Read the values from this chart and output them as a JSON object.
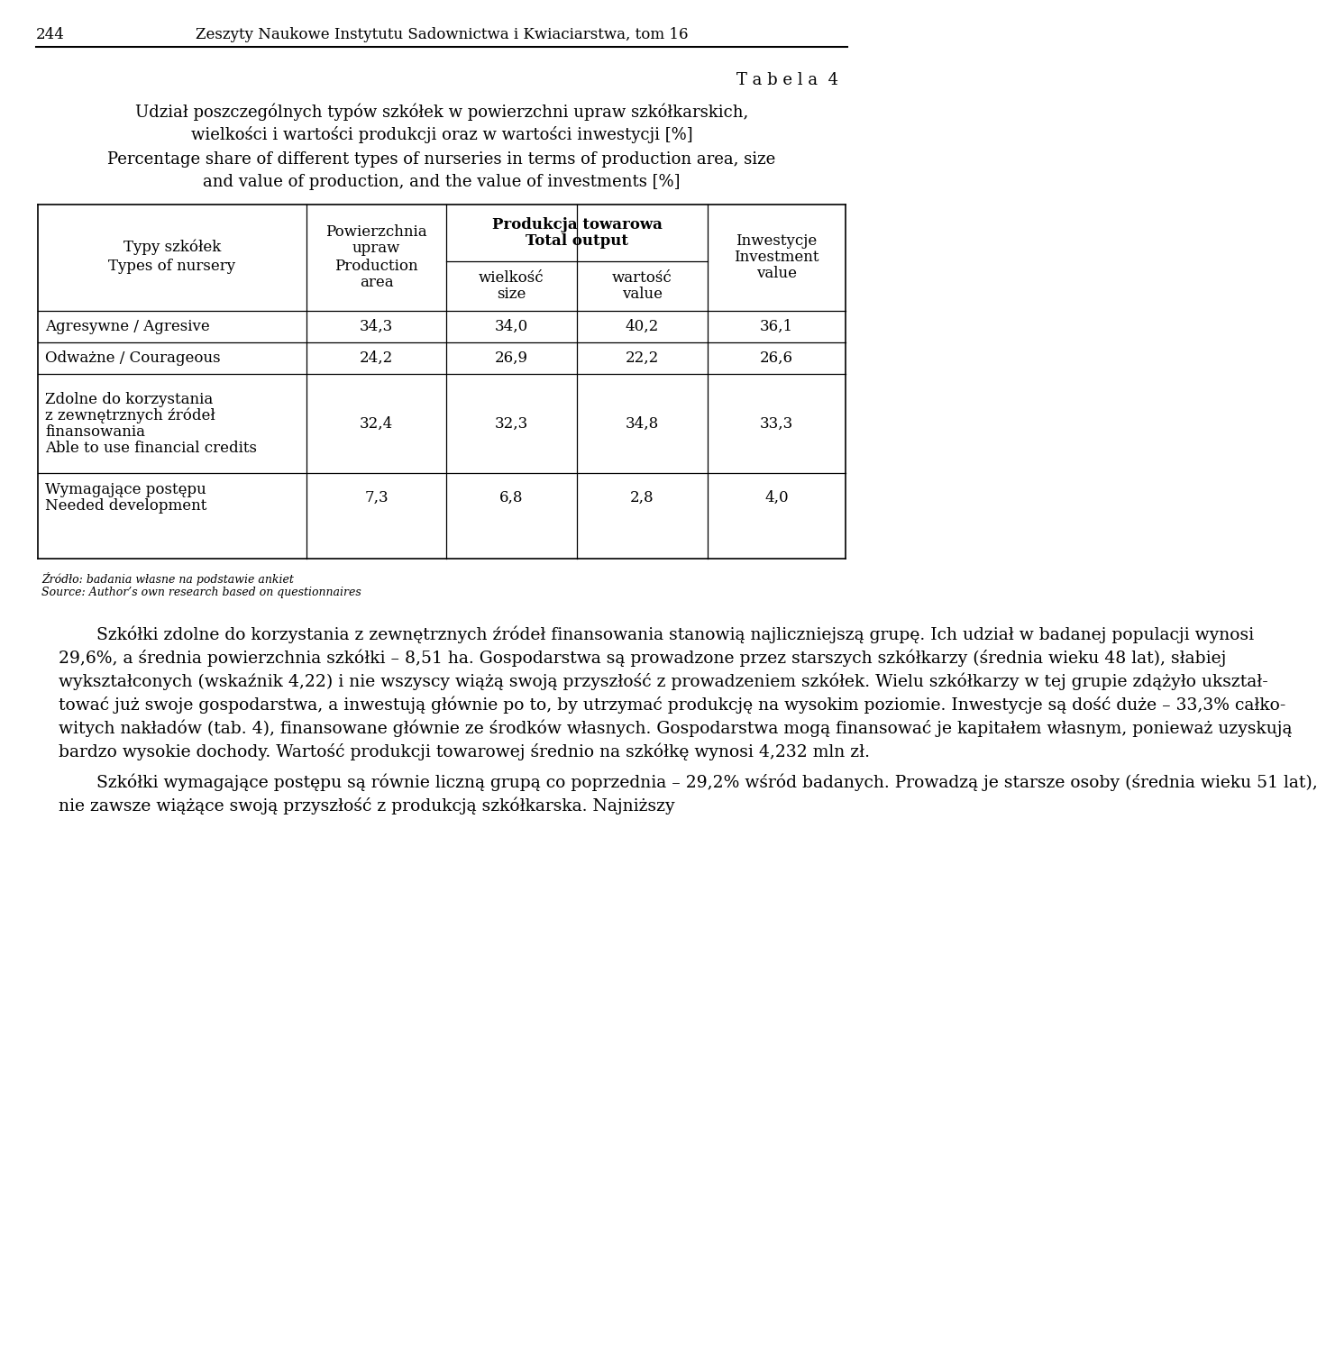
{
  "page_number": "244",
  "journal_title": "Zeszyty Naukowe Instytutu Sadownictwa i Kwiaciarstwa, tom 16",
  "table_label": "T a b e l a  4",
  "title_pl_1": "Udział poszczególnych typów szkółek w powierzchni upraw szkółkarskich,",
  "title_pl_2": "wielkości i wartości produkcji oraz w wartości inwestycji [%]",
  "title_en_1": "Percentage share of different types of nurseries in terms of production area, size",
  "title_en_2": "and value of production, and the value of investments [%]",
  "col0_h1": "Typy szkółek",
  "col0_h2": "Types of nursery",
  "col1_h1": "Powierzchnia",
  "col1_h2": "upraw",
  "col1_h3": "Production",
  "col1_h4": "area",
  "col23_h1": "Produkcja towarowa",
  "col23_h2": "Total output",
  "col2_h1": "wielkość",
  "col2_h2": "size",
  "col3_h1": "wartość",
  "col3_h2": "value",
  "col4_h1": "Inwestycje",
  "col4_h2": "Investment",
  "col4_h3": "value",
  "rows": [
    {
      "label": [
        "Agresywne / Agresive"
      ],
      "values": [
        "34,3",
        "34,0",
        "40,2",
        "36,1"
      ]
    },
    {
      "label": [
        "Odważne / Courageous"
      ],
      "values": [
        "24,2",
        "26,9",
        "22,2",
        "26,6"
      ]
    },
    {
      "label": [
        "Zdolne do korzystania",
        "z zewnętrznych źródeł",
        "finansowania",
        "Able to use financial credits"
      ],
      "values": [
        "32,4",
        "32,3",
        "34,8",
        "33,3"
      ]
    },
    {
      "label": [
        "Wymagające postępu",
        "Needed development"
      ],
      "values": [
        "7,3",
        "6,8",
        "2,8",
        "4,0"
      ]
    }
  ],
  "source_pl": "Źródło: badania własne na podstawie ankiet",
  "source_en": "Source: Author’s own research based on questionnaires",
  "body1_lines": [
    "       Szkółki zdolne do korzystania z zewnętrznych źródeł finansowania stanowią najliczniejszą grupę. Ich udział w badanej populacji wynosi",
    "29,6%, a średnia powierzchnia szkółki – 8,51 ha. Gospodarstwa są prowadzone przez starszych szkółkarzy (średnia wieku 48 lat), słabiej",
    "wykształconych (wskaźnik 4,22) i nie wszyscy wiążą swoją przyszłość z prowadzeniem szkółek. Wielu szkółkarzy w tej grupie zdążyło ukształ-",
    "tować już swoje gospodarstwa, a inwestują głównie po to, by utrzymać produkcję na wysokim poziomie. Inwestycje są dość duże – 33,3% całko-",
    "witych nakładów (tab. 4), finansowane głównie ze środków własnych. Gospodarstwa mogą finansować je kapitałem własnym, ponieważ uzyskują",
    "bardzo wysokie dochody. Wartość produkcji towarowej średnio na szkółkę wynosi 4,232 mln zł."
  ],
  "body2_lines": [
    "       Szkółki wymagające postępu są równie liczną grupą co poprzednia – 29,2% wśród badanych. Prowadzą je starsze osoby (średnia wieku 51 lat),",
    "nie zawsze wiążące swoją przyszłość z produkcją szkółkarska. Najniższy"
  ],
  "bg_color": "#ffffff",
  "text_color": "#000000"
}
